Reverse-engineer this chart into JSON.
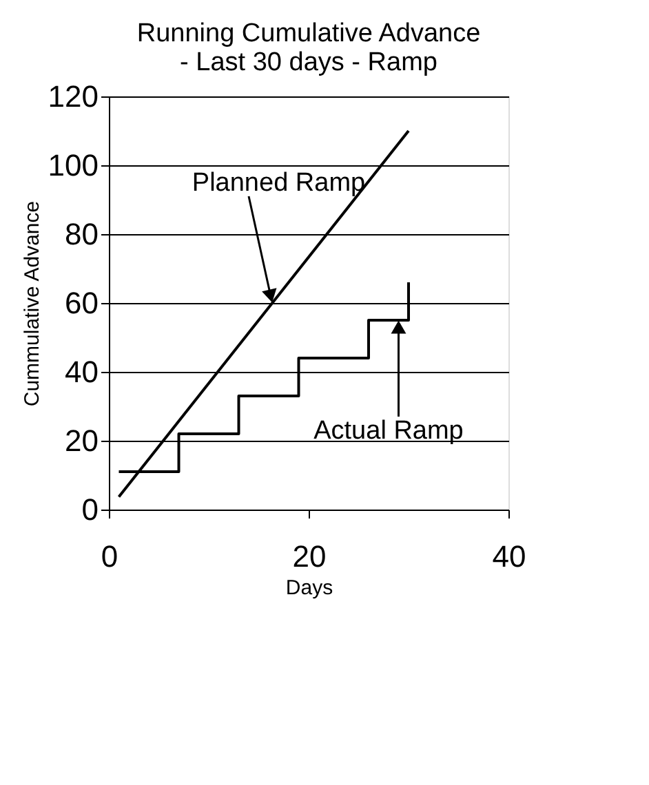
{
  "chart_data": {
    "type": "line",
    "title": [
      "Running Cumulative Advance",
      "- Last 30 days - Ramp"
    ],
    "xlabel": "Days",
    "ylabel": "Cummulative Advance",
    "xlim": [
      0,
      40
    ],
    "xticks": [
      0,
      20,
      40
    ],
    "ylim": [
      0,
      120
    ],
    "yticks": [
      0,
      20,
      40,
      60,
      80,
      100,
      120
    ],
    "grid": "y",
    "marker": "none",
    "line_style": "solid",
    "series": [
      {
        "name": "Planned Ramp",
        "color": "#000000",
        "x": [
          1,
          30
        ],
        "values": [
          3.7,
          110
        ]
      },
      {
        "name": "Actual Ramp",
        "color": "#000000",
        "type": "step",
        "x": [
          1,
          6,
          7,
          12,
          13,
          18,
          19,
          25,
          26,
          29,
          30
        ],
        "values": [
          11,
          11,
          22,
          22,
          33,
          33,
          44,
          44,
          55,
          55,
          66
        ]
      }
    ]
  }
}
